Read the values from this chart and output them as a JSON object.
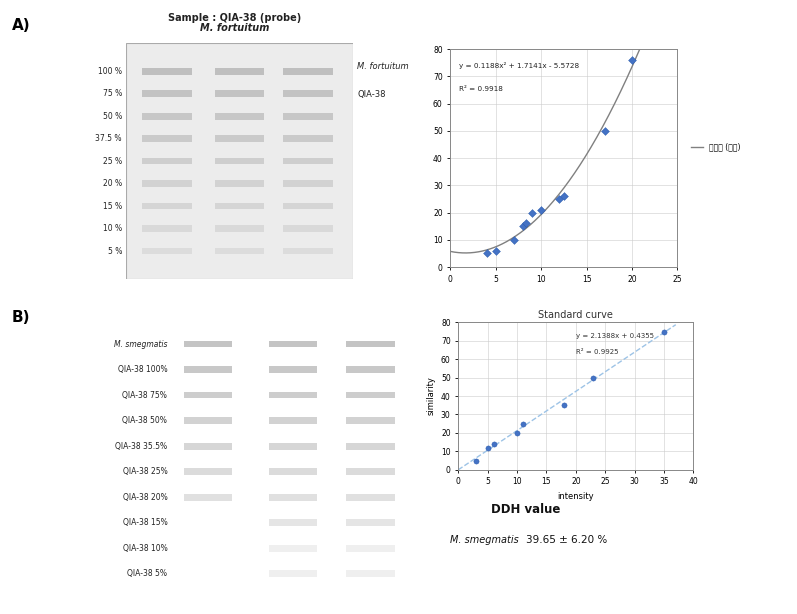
{
  "fig_width": 7.97,
  "fig_height": 6.14,
  "bg_color": "#ffffff",
  "panel_A_label": "A)",
  "panel_B_label": "B)",
  "gel_A_title1": "Sample : QIA-38 (probe)",
  "gel_A_title2": "M. fortuitum",
  "gel_A_labels_left": [
    "100 %",
    "75 %",
    "50 %",
    "37.5 %",
    "25 %",
    "20 %",
    "15 %",
    "10 %",
    "5 %"
  ],
  "gel_A_label_right_top": "M. fortuitum",
  "gel_A_label_right_bottom": "QIA-38",
  "chart_A_equation": "y = 0.1188x² + 1.7141x - 5.5728",
  "chart_A_r2": "R² = 0.9918",
  "chart_A_xlim": [
    0,
    25
  ],
  "chart_A_ylim": [
    0,
    80
  ],
  "chart_A_xticks": [
    0,
    5,
    10,
    15,
    20,
    25
  ],
  "chart_A_yticks": [
    0,
    10,
    20,
    30,
    40,
    50,
    60,
    70,
    80
  ],
  "chart_A_x": [
    4,
    5,
    7,
    8,
    8.3,
    9,
    10,
    12,
    12.5,
    17,
    20
  ],
  "chart_A_y": [
    5,
    6,
    10,
    15,
    16,
    20,
    21,
    25,
    26,
    50,
    76
  ],
  "chart_A_legend_label": "다항식 (차수)",
  "chart_A_line_color": "#808080",
  "chart_A_marker_color": "#4472C4",
  "gel_B_labels_left": [
    "M. smegmatis",
    "QIA-38 100%",
    "QIA-38 75%",
    "QIA-38 50%",
    "QIA-38 35.5%",
    "QIA-38 25%",
    "QIA-38 20%",
    "QIA-38 15%",
    "QIA-38 10%",
    "QIA-38 5%"
  ],
  "chart_B_title": "Standard curve",
  "chart_B_equation": "y = 2.1388x + 0.4355",
  "chart_B_r2": "R² = 0.9925",
  "chart_B_xlabel": "intensity",
  "chart_B_ylabel": "similarity",
  "chart_B_xlim": [
    0,
    40
  ],
  "chart_B_ylim": [
    0,
    80
  ],
  "chart_B_xticks": [
    0,
    5,
    10,
    15,
    20,
    25,
    30,
    35,
    40
  ],
  "chart_B_yticks": [
    0,
    10,
    20,
    30,
    40,
    50,
    60,
    70,
    80
  ],
  "chart_B_x": [
    3,
    5,
    6,
    10,
    11,
    18,
    23,
    35
  ],
  "chart_B_y": [
    5,
    12,
    14,
    20,
    25,
    35,
    50,
    75
  ],
  "chart_B_line_color": "#9dc3e6",
  "chart_B_marker_color": "#4472C4",
  "ddh_label": "DDH value",
  "ddh_organism": "M. smegmatis",
  "ddh_value": "39.65 ± 6.20 %",
  "gel_A_bg": "#eeeeee",
  "gel_B_bg": "#e0e0e0",
  "band_color": "#c8c8c8",
  "band_edge": "#bbbbbb"
}
